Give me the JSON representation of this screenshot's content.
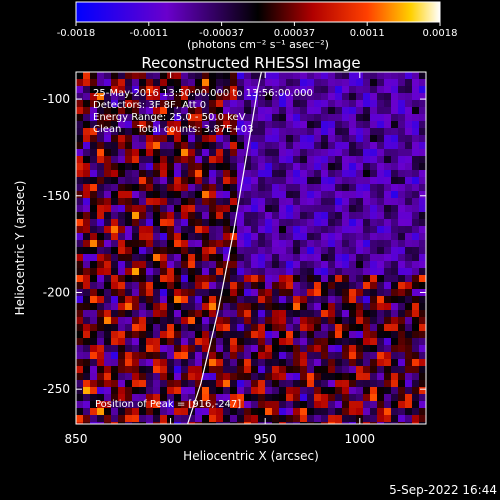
{
  "chart_data": {
    "type": "heatmap",
    "title": "Reconstructed RHESSI Image",
    "xlabel": "Heliocentric X (arcsec)",
    "ylabel": "Heliocentric Y (arcsec)",
    "xlim": [
      850,
      1035
    ],
    "ylim": [
      -268,
      -86
    ],
    "x_ticks": [
      850,
      900,
      950,
      1000
    ],
    "y_ticks": [
      -100,
      -150,
      -200,
      -250
    ],
    "colorbar": {
      "label": "(photons cm⁻² s⁻¹ asec⁻²)",
      "range": [
        -0.0018,
        0.0018
      ],
      "ticks": [
        "-0.0018",
        "-0.0011",
        "-0.00037",
        "0.00037",
        "0.0011",
        "0.0018"
      ]
    },
    "annotations": [
      "25-May-2016 13:50:00.000 to 13:56:00.000",
      "Detectors: 3F 8F, Att 0",
      "Energy Range: 25.0 - 50.0 keV",
      "Clean     Total counts: 3.87E+03"
    ],
    "peak_label": "Position of Peak = [916,-247]",
    "peak": [
      916,
      -247
    ],
    "limb_curve": [
      [
        909,
        -268
      ],
      [
        916,
        -247
      ],
      [
        925,
        -210
      ],
      [
        933,
        -170
      ],
      [
        940,
        -130
      ],
      [
        946,
        -95
      ],
      [
        948,
        -86
      ]
    ]
  },
  "timestamp": "5-Sep-2022 16:44"
}
